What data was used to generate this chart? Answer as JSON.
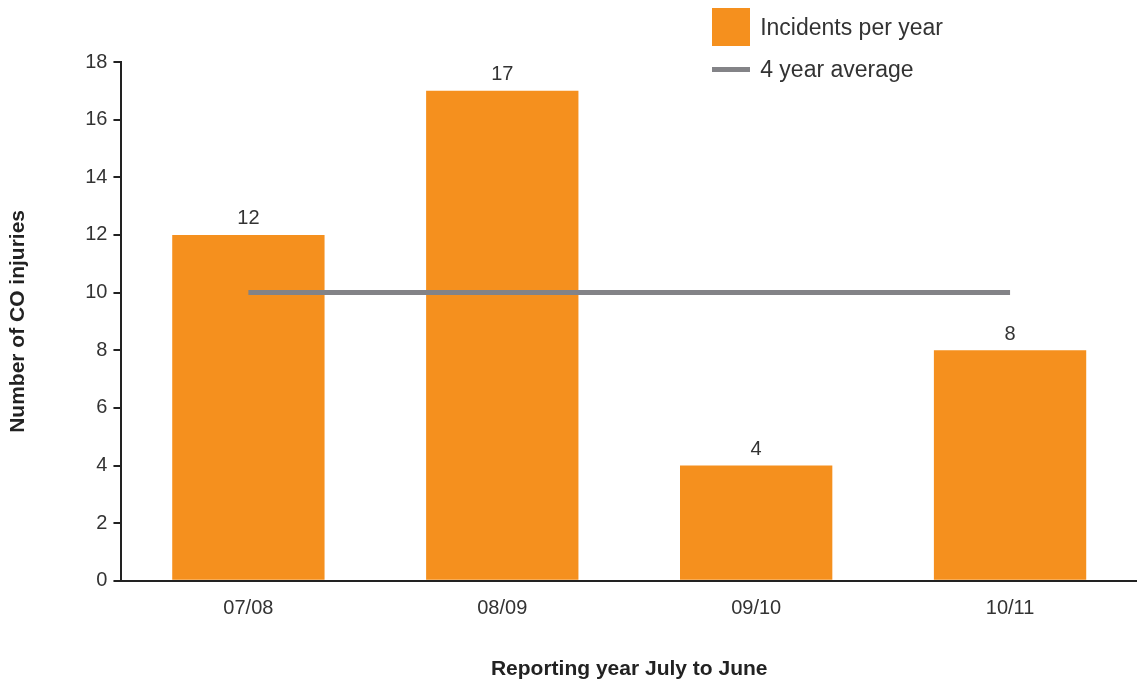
{
  "chart_data": {
    "type": "bar",
    "categories": [
      "07/08",
      "08/09",
      "09/10",
      "10/11"
    ],
    "series": [
      {
        "name": "Incidents per year",
        "color": "#f5901e",
        "values": [
          12,
          17,
          4,
          8
        ],
        "value_labels": [
          "12",
          "17",
          "4",
          "8"
        ]
      },
      {
        "name": "4 year average",
        "type": "line",
        "color": "#838387",
        "values": [
          10,
          10,
          10,
          10
        ],
        "marker": "none",
        "line_style": "solid"
      }
    ],
    "xlabel": "Reporting year July to June",
    "ylabel": "Number of CO injuries",
    "ylim": [
      0,
      18
    ],
    "yticks": [
      0,
      2,
      4,
      6,
      8,
      10,
      12,
      14,
      16,
      18
    ],
    "legend": "top right"
  }
}
